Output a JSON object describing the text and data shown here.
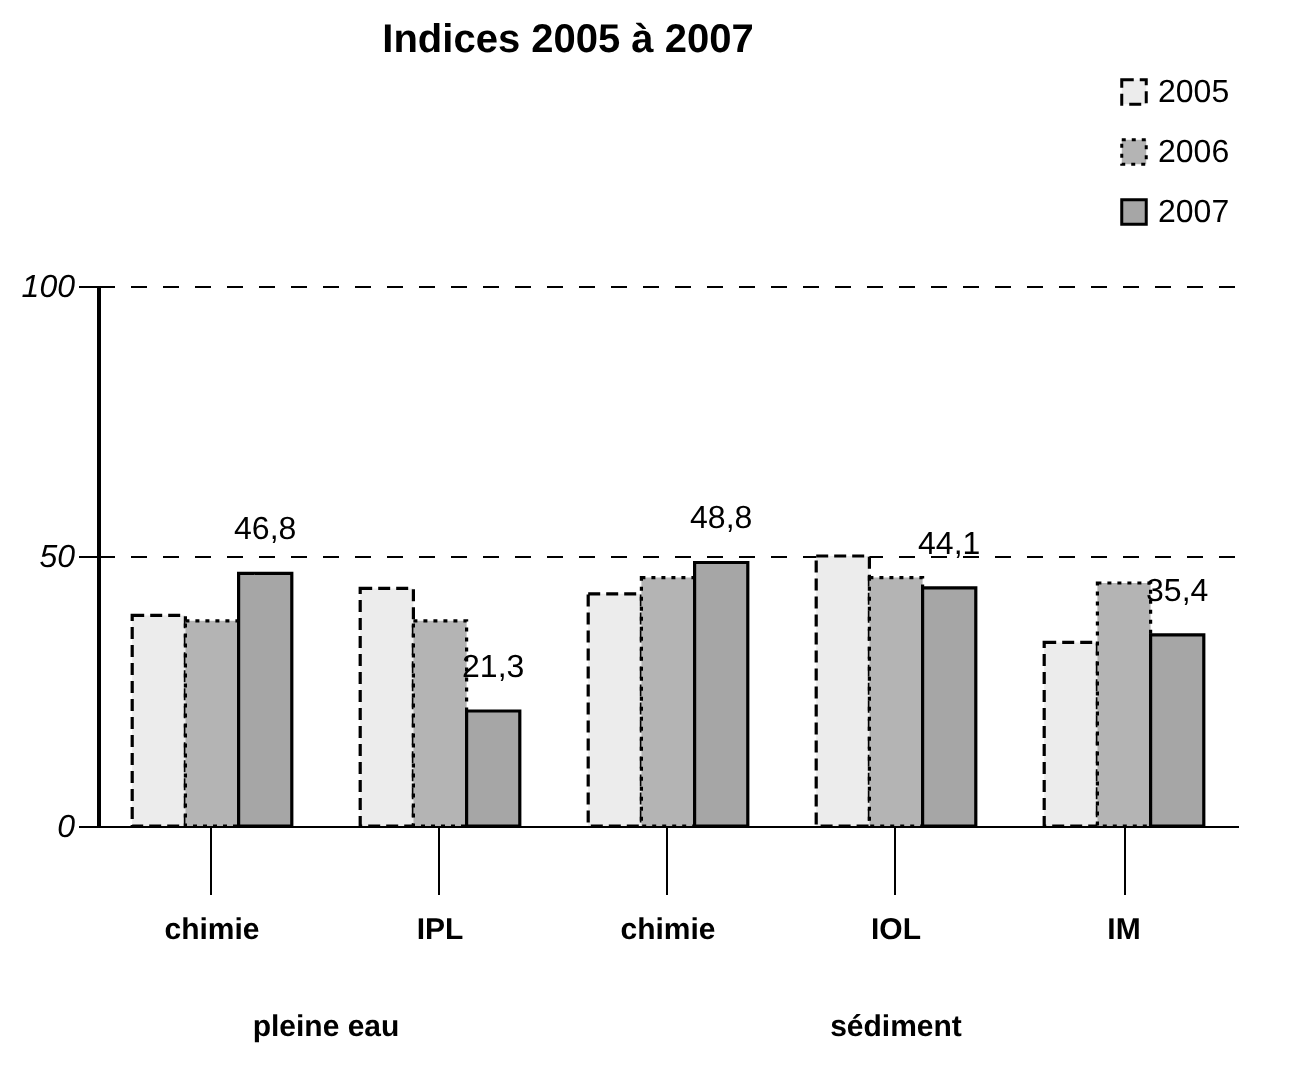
{
  "chart_data": {
    "type": "bar",
    "title": "Indices 2005 à 2007",
    "categories": [
      "chimie",
      "IPL",
      "chimie",
      "IOL",
      "IM"
    ],
    "series": [
      {
        "name": "2005",
        "color": "#ececec",
        "line_style": "dashed",
        "values": [
          39,
          44,
          43,
          50,
          34
        ]
      },
      {
        "name": "2006",
        "color": "#b4b4b4",
        "line_style": "dotted",
        "values": [
          38,
          38,
          46,
          46,
          45
        ]
      },
      {
        "name": "2007",
        "color": "#a6a6a6",
        "line_style": "solid",
        "values": [
          46.8,
          21.3,
          48.8,
          44.1,
          35.4
        ],
        "value_labels": [
          "46,8",
          "21,3",
          "48,8",
          "44,1",
          "35,4"
        ]
      }
    ],
    "annotations": [
      "pleine eau",
      "sédiment"
    ],
    "ylim": [
      0,
      100
    ],
    "yticks": [
      0,
      50,
      100
    ],
    "grid": "y",
    "legend": "top right"
  }
}
